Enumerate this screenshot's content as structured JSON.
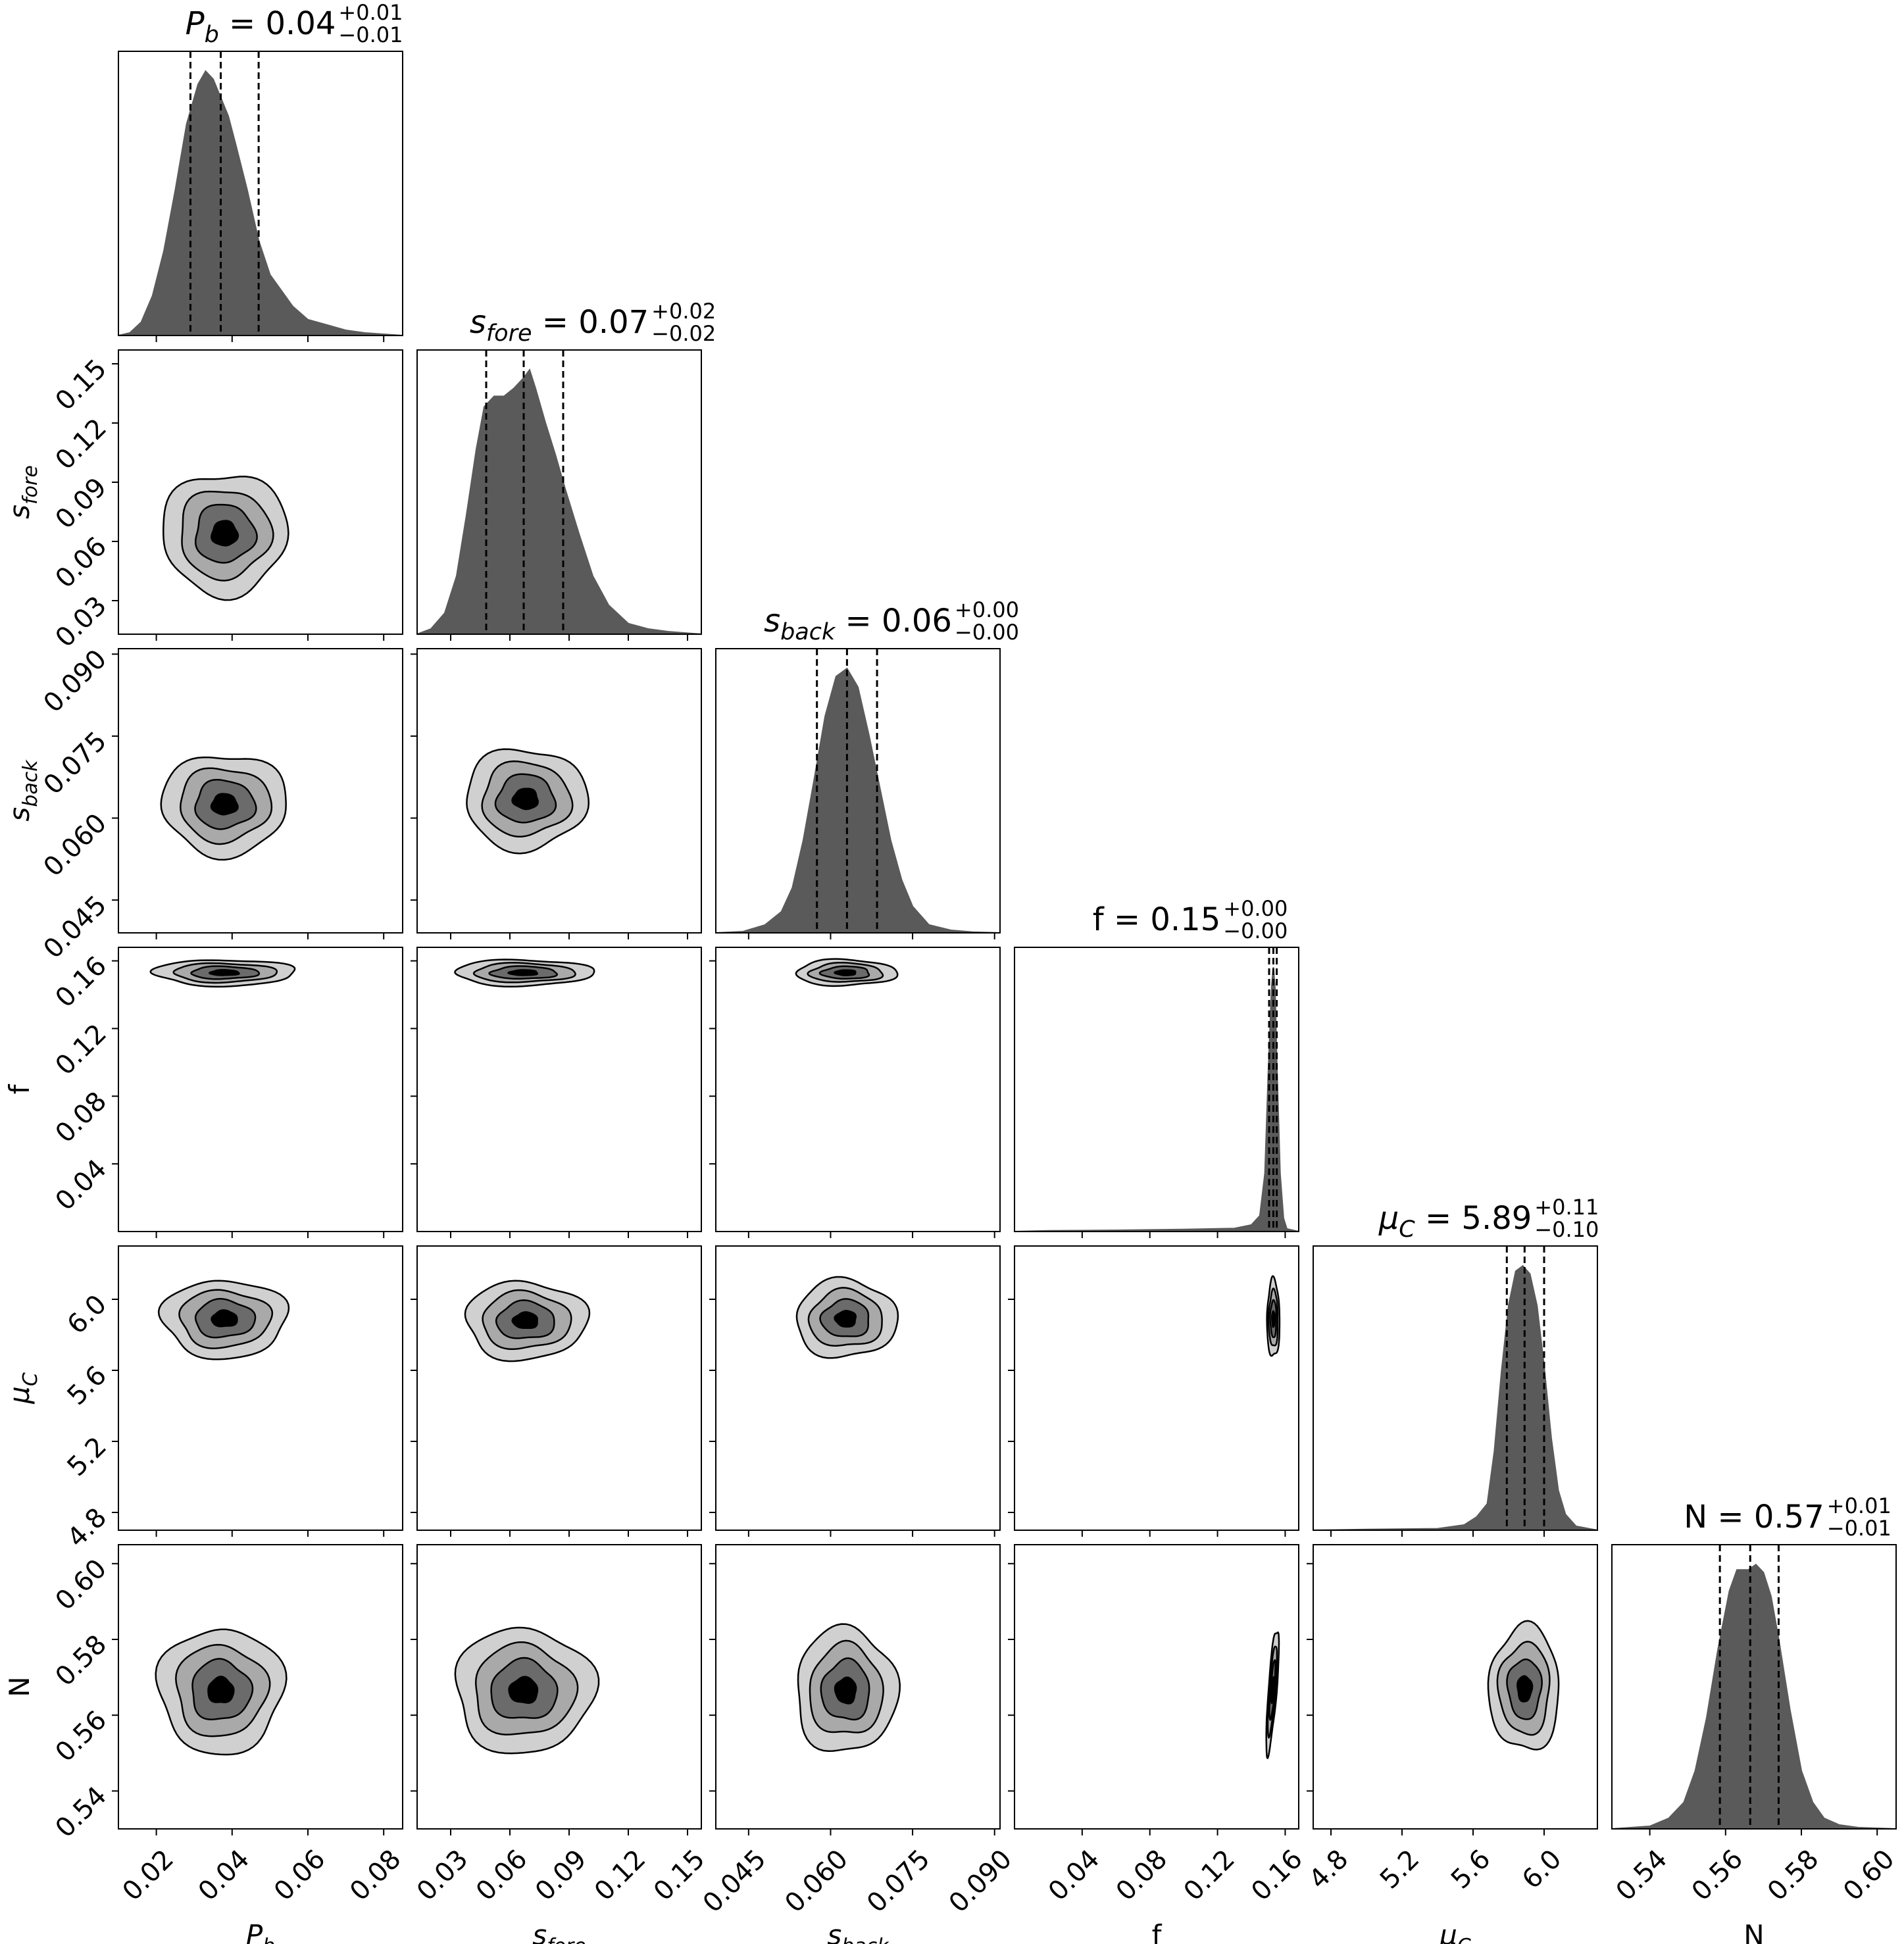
{
  "chart_data": {
    "type": "corner",
    "parameters": [
      {
        "id": "pb",
        "label_main": "P",
        "label_sub": "b",
        "italic": true,
        "title": {
          "value": "0.04",
          "plus": "+0.01",
          "minus": "−0.01"
        },
        "range": [
          0.01,
          0.085
        ],
        "ticks": [
          0.02,
          0.04,
          0.06,
          0.08
        ],
        "tick_labels": [
          "0.02",
          "0.04",
          "0.06",
          "0.08"
        ],
        "quantiles": [
          0.029,
          0.037,
          0.047
        ],
        "hist": {
          "x": [
            0.01,
            0.013,
            0.016,
            0.019,
            0.022,
            0.025,
            0.028,
            0.031,
            0.033,
            0.035,
            0.037,
            0.039,
            0.041,
            0.044,
            0.047,
            0.05,
            0.053,
            0.056,
            0.06,
            0.065,
            0.07,
            0.075,
            0.08,
            0.085
          ],
          "y": [
            0.0,
            0.01,
            0.05,
            0.15,
            0.32,
            0.55,
            0.8,
            0.95,
            1.0,
            0.97,
            0.9,
            0.83,
            0.72,
            0.55,
            0.36,
            0.23,
            0.17,
            0.11,
            0.06,
            0.04,
            0.02,
            0.01,
            0.005,
            0.0
          ]
        }
      },
      {
        "id": "sfore",
        "label_main": "s",
        "label_sub": "fore",
        "italic": true,
        "title": {
          "value": "0.07",
          "plus": "+0.02",
          "minus": "−0.02"
        },
        "range": [
          0.013,
          0.157
        ],
        "ticks": [
          0.03,
          0.06,
          0.09,
          0.12,
          0.15
        ],
        "tick_labels": [
          "0.03",
          "0.06",
          "0.09",
          "0.12",
          "0.15"
        ],
        "quantiles": [
          0.048,
          0.067,
          0.087
        ],
        "hist": {
          "x": [
            0.013,
            0.02,
            0.027,
            0.033,
            0.038,
            0.043,
            0.047,
            0.052,
            0.057,
            0.062,
            0.067,
            0.07,
            0.073,
            0.078,
            0.083,
            0.088,
            0.095,
            0.102,
            0.11,
            0.12,
            0.13,
            0.14,
            0.157
          ],
          "y": [
            0.0,
            0.02,
            0.08,
            0.22,
            0.45,
            0.7,
            0.86,
            0.9,
            0.9,
            0.93,
            0.97,
            1.0,
            0.93,
            0.8,
            0.68,
            0.55,
            0.38,
            0.22,
            0.11,
            0.04,
            0.02,
            0.01,
            0.0
          ]
        }
      },
      {
        "id": "sback",
        "label_main": "s",
        "label_sub": "back",
        "italic": true,
        "title": {
          "value": "0.06",
          "plus": "+0.00",
          "minus": "−0.00"
        },
        "range": [
          0.039,
          0.091
        ],
        "ticks": [
          0.045,
          0.06,
          0.075,
          0.09
        ],
        "tick_labels": [
          "0.045",
          "0.060",
          "0.075",
          "0.090"
        ],
        "quantiles": [
          0.0575,
          0.063,
          0.0685
        ],
        "hist": {
          "x": [
            0.039,
            0.044,
            0.048,
            0.051,
            0.053,
            0.055,
            0.057,
            0.059,
            0.061,
            0.063,
            0.065,
            0.067,
            0.069,
            0.071,
            0.073,
            0.075,
            0.078,
            0.082,
            0.086,
            0.091
          ],
          "y": [
            0.0,
            0.005,
            0.03,
            0.08,
            0.17,
            0.35,
            0.58,
            0.82,
            0.97,
            1.0,
            0.93,
            0.75,
            0.55,
            0.35,
            0.2,
            0.1,
            0.03,
            0.01,
            0.003,
            0.0
          ]
        }
      },
      {
        "id": "f",
        "label_main": "f",
        "label_sub": "",
        "italic": false,
        "title": {
          "value": "0.15",
          "plus": "+0.00",
          "minus": "−0.00"
        },
        "range": [
          0.0,
          0.168
        ],
        "ticks": [
          0.04,
          0.08,
          0.12,
          0.16
        ],
        "tick_labels": [
          "0.04",
          "0.08",
          "0.12",
          "0.16"
        ],
        "quantiles": [
          0.1505,
          0.153,
          0.155
        ],
        "hist": {
          "x": [
            0.0,
            0.02,
            0.06,
            0.1,
            0.13,
            0.14,
            0.145,
            0.148,
            0.15,
            0.152,
            0.153,
            0.154,
            0.155,
            0.157,
            0.159,
            0.161,
            0.168
          ],
          "y": [
            0.0,
            0.003,
            0.005,
            0.008,
            0.012,
            0.025,
            0.06,
            0.22,
            0.6,
            0.93,
            1.0,
            0.92,
            0.65,
            0.22,
            0.05,
            0.01,
            0.0
          ]
        }
      },
      {
        "id": "muc",
        "label_main": "μ",
        "label_sub": "C",
        "italic": true,
        "title": {
          "value": "5.89",
          "plus": "+0.11",
          "minus": "−0.10"
        },
        "range": [
          4.7,
          6.3
        ],
        "ticks": [
          4.8,
          5.2,
          5.6,
          6.0
        ],
        "tick_labels": [
          "4.8",
          "5.2",
          "5.6",
          "6.0"
        ],
        "quantiles": [
          5.79,
          5.89,
          6.0
        ],
        "hist": {
          "x": [
            4.7,
            5.0,
            5.4,
            5.55,
            5.62,
            5.68,
            5.72,
            5.76,
            5.8,
            5.84,
            5.88,
            5.92,
            5.96,
            6.0,
            6.04,
            6.08,
            6.12,
            6.18,
            6.3
          ],
          "y": [
            0.0,
            0.003,
            0.006,
            0.02,
            0.05,
            0.1,
            0.3,
            0.6,
            0.85,
            0.98,
            1.0,
            0.97,
            0.85,
            0.62,
            0.35,
            0.15,
            0.06,
            0.015,
            0.0
          ]
        }
      },
      {
        "id": "n",
        "label_main": "N",
        "label_sub": "",
        "italic": false,
        "title": {
          "value": "0.57",
          "plus": "+0.01",
          "minus": "−0.01"
        },
        "range": [
          0.53,
          0.605
        ],
        "ticks": [
          0.54,
          0.56,
          0.58,
          0.6
        ],
        "tick_labels": [
          "0.54",
          "0.56",
          "0.58",
          "0.60"
        ],
        "quantiles": [
          0.5585,
          0.5665,
          0.574
        ],
        "hist": {
          "x": [
            0.53,
            0.54,
            0.545,
            0.549,
            0.552,
            0.555,
            0.558,
            0.561,
            0.563,
            0.566,
            0.568,
            0.57,
            0.572,
            0.574,
            0.577,
            0.58,
            0.583,
            0.586,
            0.59,
            0.595,
            0.605
          ],
          "y": [
            0.0,
            0.01,
            0.04,
            0.1,
            0.22,
            0.42,
            0.68,
            0.9,
            0.98,
            0.98,
            1.0,
            0.97,
            0.88,
            0.72,
            0.45,
            0.22,
            0.1,
            0.04,
            0.015,
            0.005,
            0.0
          ]
        }
      }
    ],
    "pairs": [
      {
        "row": "sfore",
        "col": "pb",
        "cx": 0.038,
        "cy": 0.064,
        "sx": 0.0075,
        "sy": 0.014
      },
      {
        "row": "sback",
        "col": "pb",
        "cx": 0.038,
        "cy": 0.0625,
        "sx": 0.0075,
        "sy": 0.0042
      },
      {
        "row": "sback",
        "col": "sfore",
        "cx": 0.068,
        "cy": 0.0635,
        "sx": 0.014,
        "sy": 0.0042
      },
      {
        "row": "f",
        "col": "pb",
        "cx": 0.038,
        "cy": 0.153,
        "sx": 0.0085,
        "sy": 0.0035
      },
      {
        "row": "f",
        "col": "sfore",
        "cx": 0.067,
        "cy": 0.153,
        "sx": 0.016,
        "sy": 0.0035
      },
      {
        "row": "f",
        "col": "sback",
        "cx": 0.0628,
        "cy": 0.153,
        "sx": 0.0042,
        "sy": 0.0035
      },
      {
        "row": "muc",
        "col": "pb",
        "cx": 0.038,
        "cy": 5.89,
        "sx": 0.0075,
        "sy": 0.1
      },
      {
        "row": "muc",
        "col": "sfore",
        "cx": 0.068,
        "cy": 5.88,
        "sx": 0.014,
        "sy": 0.1
      },
      {
        "row": "muc",
        "col": "sback",
        "cx": 0.0628,
        "cy": 5.89,
        "sx": 0.0042,
        "sy": 0.1
      },
      {
        "row": "muc",
        "col": "f",
        "cx": 0.153,
        "cy": 5.89,
        "sx": 0.0017,
        "sy": 0.1
      },
      {
        "row": "n",
        "col": "pb",
        "cx": 0.037,
        "cy": 0.5665,
        "sx": 0.0075,
        "sy": 0.0075
      },
      {
        "row": "n",
        "col": "sfore",
        "cx": 0.067,
        "cy": 0.5665,
        "sx": 0.016,
        "sy": 0.0075
      },
      {
        "row": "n",
        "col": "sback",
        "cx": 0.0628,
        "cy": 0.5665,
        "sx": 0.0042,
        "sy": 0.0075
      },
      {
        "row": "n",
        "col": "f",
        "cx": 0.1525,
        "cy": 0.5665,
        "sx": 0.0017,
        "sy": 0.0075,
        "rho": 0.75
      },
      {
        "row": "n",
        "col": "muc",
        "cx": 5.89,
        "cy": 0.567,
        "sx": 0.09,
        "sy": 0.0075
      }
    ],
    "contour_fills": [
      "#d0d0d0",
      "#a9a9a9",
      "#6b6b6b",
      "#000000"
    ],
    "hist_color": "#5a5a5a",
    "grid": false
  }
}
